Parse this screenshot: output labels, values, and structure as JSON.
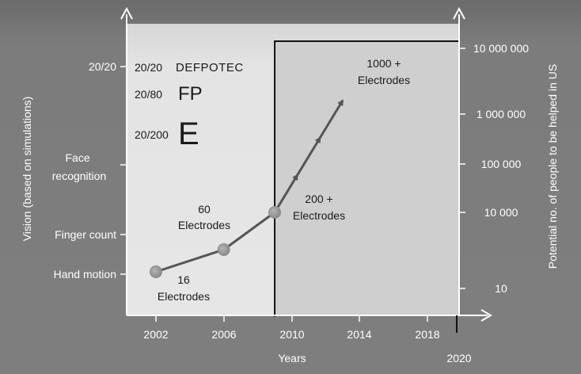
{
  "chart_data": {
    "type": "line",
    "title": "",
    "xlabel": "Years",
    "ylabel_left": "Vision (based on simulations)",
    "ylabel_right": "Potential no. of people to be helped in US",
    "x_ticks": [
      "2002",
      "2006",
      "2010",
      "2014",
      "2018"
    ],
    "x_end_label": "2020",
    "xlim": [
      2002,
      2020
    ],
    "y_left_ticks": [
      "Hand motion",
      "Finger count",
      "Face recognition",
      "20/20"
    ],
    "y_right_ticks": [
      "10",
      "10 000",
      "100 000",
      "1 000 000",
      "10 000 000"
    ],
    "y_right_scale": "log",
    "shaded_region_start": 2009,
    "series": [
      {
        "points": [
          {
            "x": 2002,
            "label": "16 Electrodes",
            "marker": true
          },
          {
            "x": 2006,
            "label": "60 Electrodes",
            "marker": true
          },
          {
            "x": 2009,
            "label": "200 + Electrodes",
            "marker": true
          },
          {
            "x": 2013,
            "label": "1000 + Electrodes",
            "marker": false
          }
        ]
      }
    ],
    "acuity_annotations": [
      {
        "label": "20/20",
        "letters": "DEFPOTEC"
      },
      {
        "label": "20/80",
        "letters": "FP"
      },
      {
        "label": "20/200",
        "letters": "E"
      }
    ]
  }
}
